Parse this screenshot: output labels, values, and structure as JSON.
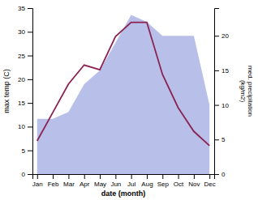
{
  "chart_data": {
    "type": "line",
    "categories": [
      "Jan",
      "Feb",
      "Mar",
      "Apr",
      "May",
      "Jun",
      "Jul",
      "Aug",
      "Sep",
      "Oct",
      "Nov",
      "Dec"
    ],
    "xlabel": "date (month)",
    "ylabel": "max temp (C)",
    "y2label": "med. precipitation\n(kg/m2)",
    "ylim": [
      0,
      35
    ],
    "yticks": [
      0,
      5,
      10,
      15,
      20,
      25,
      30,
      35
    ],
    "y2lim": [
      0,
      24
    ],
    "y2ticks": [
      0,
      5,
      10,
      15,
      20
    ],
    "grid": false,
    "series": [
      {
        "type": "area",
        "axis": "y2",
        "color": "#b8bfe8",
        "values": [
          8,
          8,
          9,
          13,
          15,
          19,
          23,
          22,
          20,
          20,
          20,
          10
        ]
      },
      {
        "type": "line",
        "color": "#8B2252",
        "values": [
          7,
          13,
          19,
          23,
          22,
          29,
          32,
          32,
          21,
          14,
          9,
          6
        ]
      }
    ]
  }
}
